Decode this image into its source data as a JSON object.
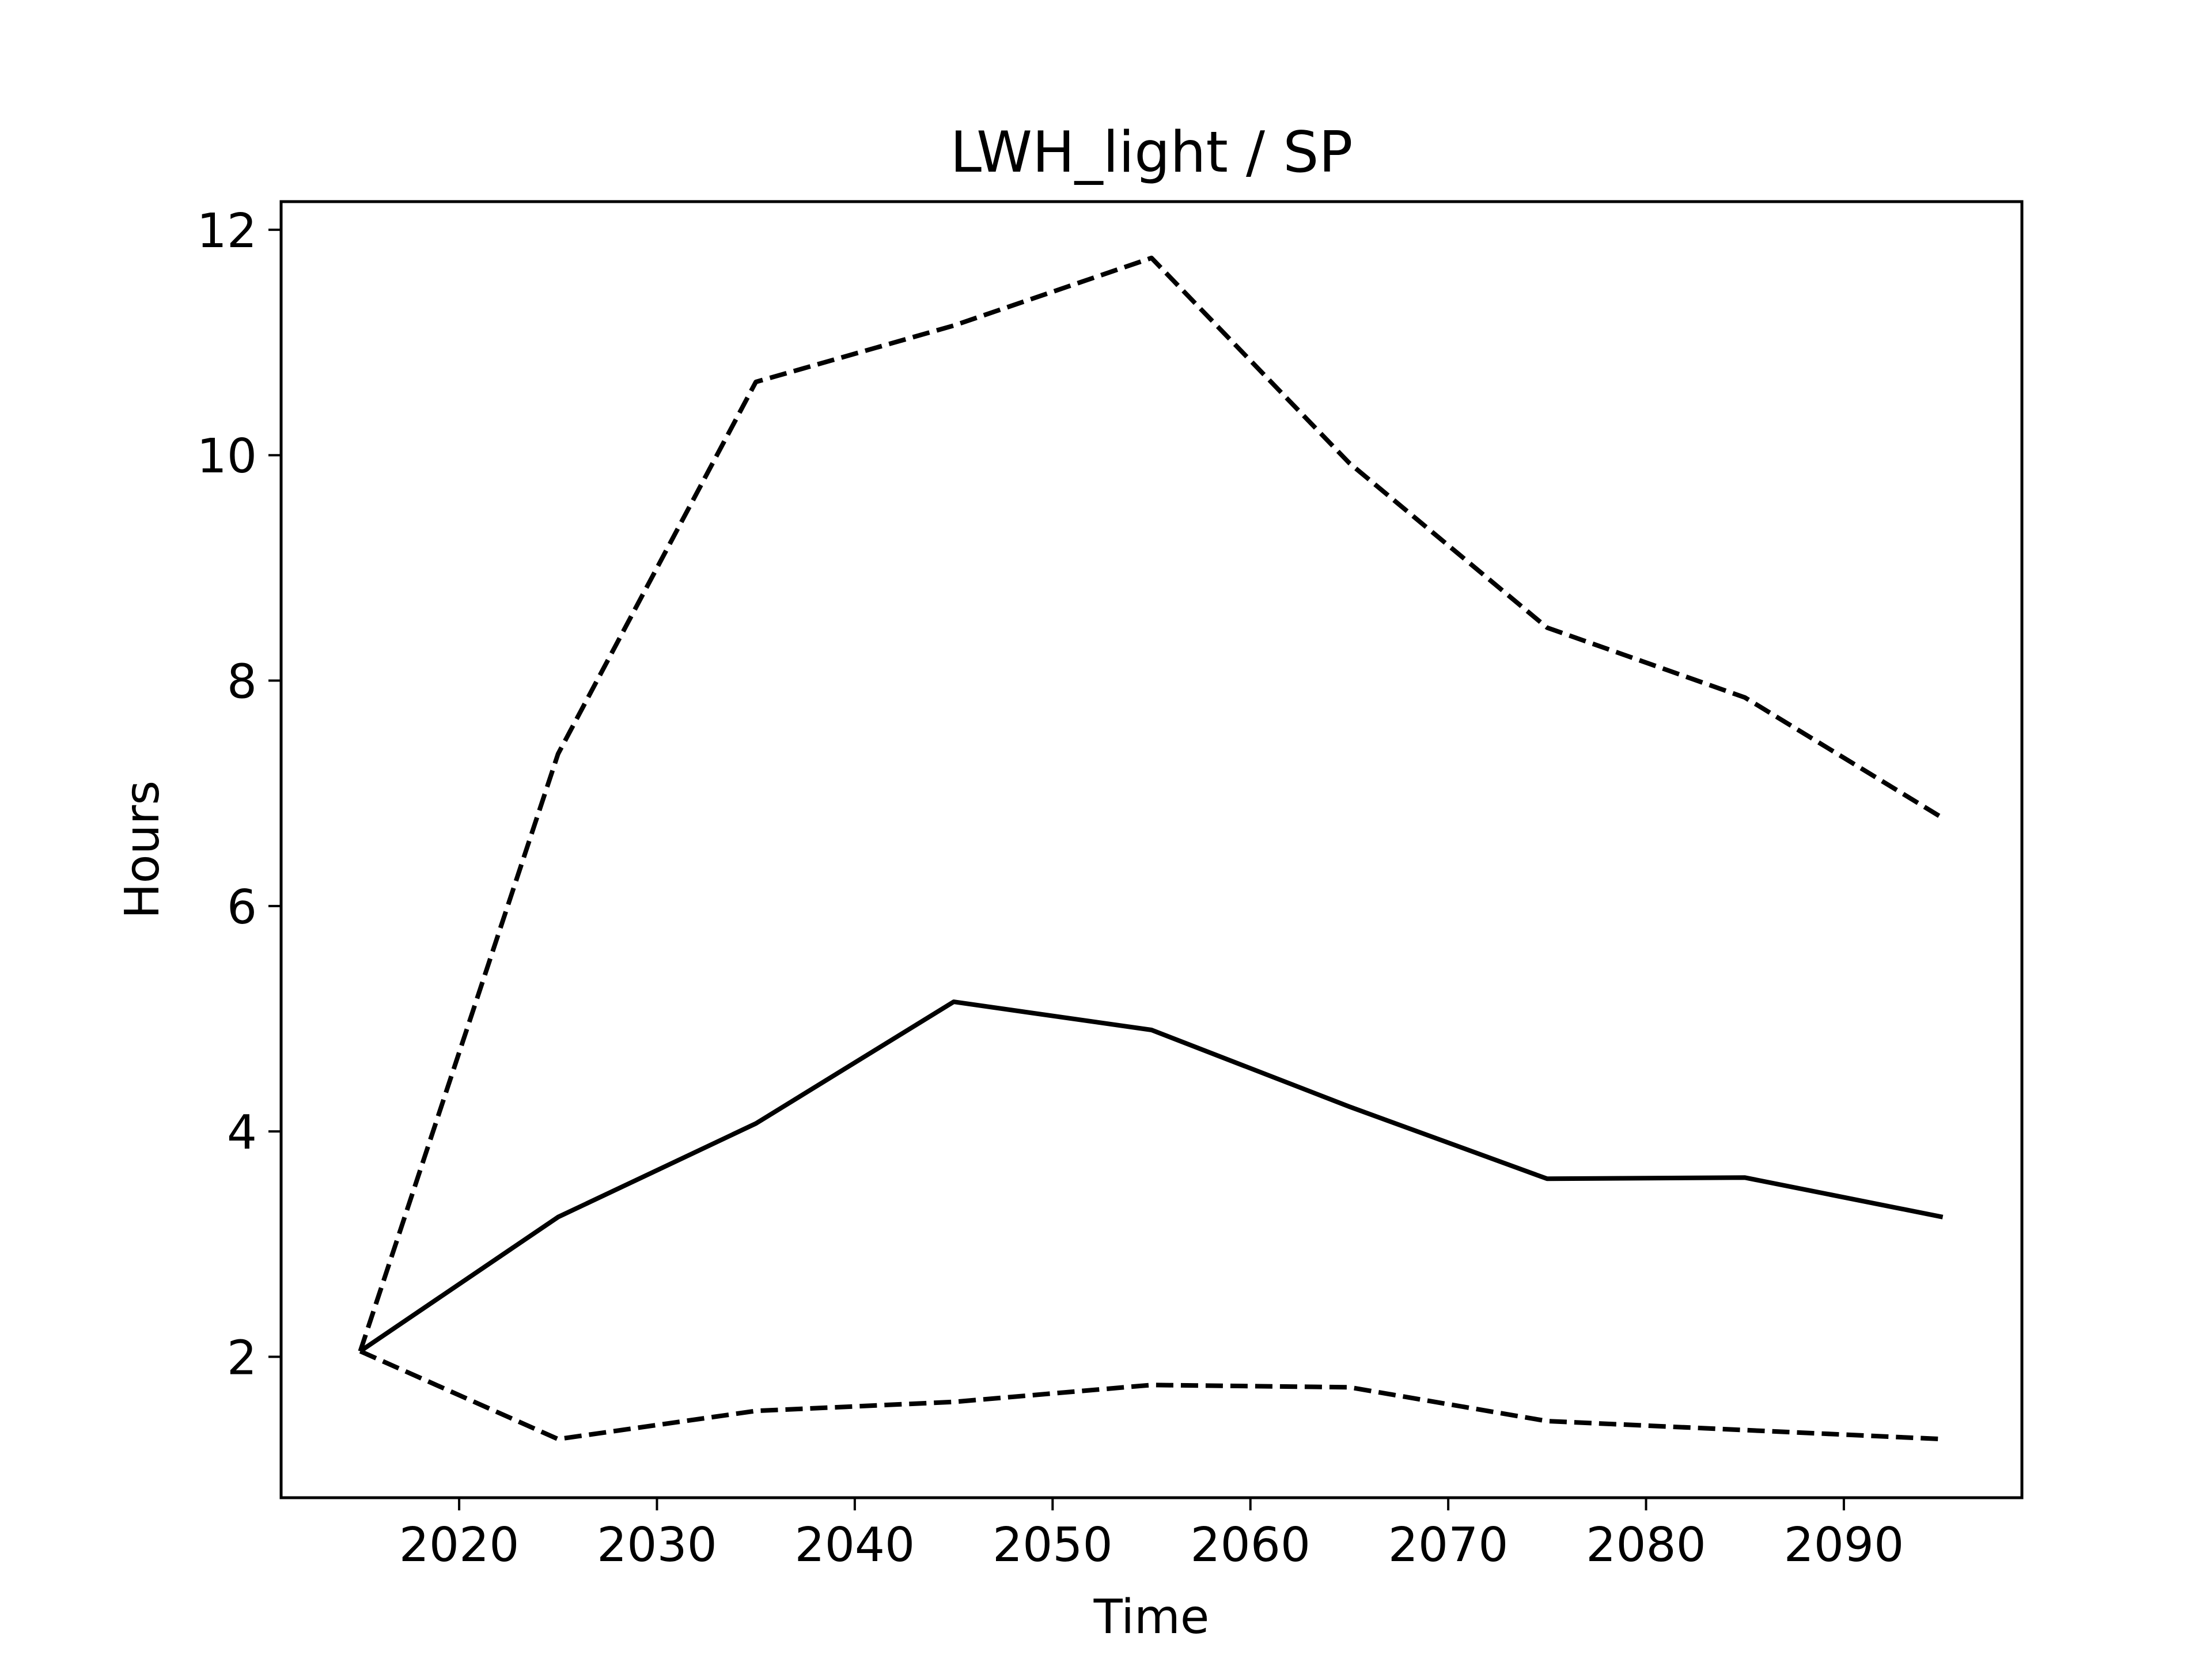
{
  "chart_data": {
    "type": "line",
    "title": "LWH_light / SP",
    "xlabel": "Time",
    "ylabel": "Hours",
    "x": [
      2015,
      2025,
      2035,
      2045,
      2055,
      2065,
      2075,
      2085,
      2095
    ],
    "series": [
      {
        "style": "solid",
        "values": [
          2.05,
          3.24,
          4.07,
          5.15,
          4.9,
          4.22,
          3.58,
          3.59,
          3.24
        ]
      },
      {
        "style": "dashed",
        "values": [
          2.05,
          7.35,
          10.65,
          11.15,
          11.75,
          9.93,
          8.47,
          7.85,
          6.78
        ]
      },
      {
        "style": "dashed",
        "values": [
          2.05,
          1.27,
          1.52,
          1.6,
          1.75,
          1.73,
          1.43,
          1.35,
          1.27
        ]
      }
    ],
    "xlim": [
      2011,
      2099
    ],
    "ylim": [
      0.75,
      12.25
    ],
    "xticks": [
      2020,
      2030,
      2040,
      2050,
      2060,
      2070,
      2080,
      2090
    ],
    "yticks": [
      2,
      4,
      6,
      8,
      10,
      12
    ],
    "grid": false,
    "legend": "none",
    "line_color": "#000000"
  }
}
